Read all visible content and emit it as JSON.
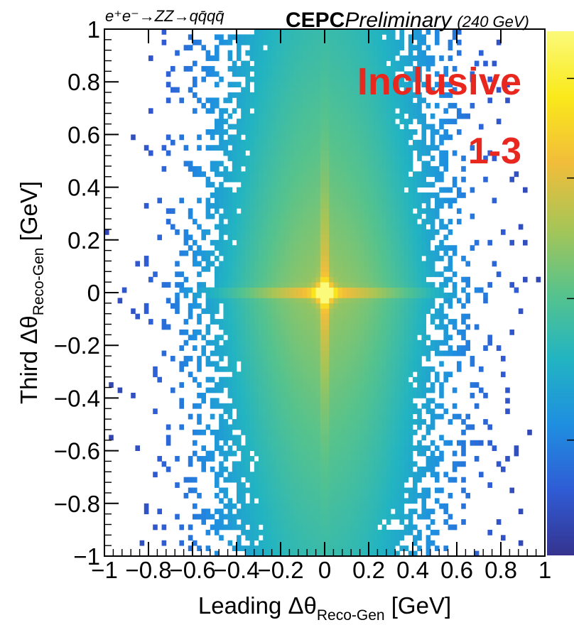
{
  "chart_data": {
    "type": "heatmap",
    "process_label": "e⁺e⁻→ZZ→qq̄qq̄",
    "experiment": "CEPC",
    "status": "Preliminary",
    "energy": "(240 GeV)",
    "annotations": [
      "Inclusive",
      "1-3"
    ],
    "xlabel": {
      "prefix": "Leading Δθ",
      "sub": "Reco-Gen",
      "suffix": " [GeV]"
    },
    "ylabel": {
      "prefix": "Third Δθ",
      "sub": "Reco-Gen",
      "suffix": " [GeV]"
    },
    "xlim": [
      -1,
      1
    ],
    "ylim": [
      -1,
      1
    ],
    "x_ticks": [
      {
        "value": -1,
        "label": "−1"
      },
      {
        "value": -0.8,
        "label": "−0.8"
      },
      {
        "value": -0.6,
        "label": "−0.6"
      },
      {
        "value": -0.4,
        "label": "−0.4"
      },
      {
        "value": -0.2,
        "label": "−0.2"
      },
      {
        "value": 0,
        "label": "0"
      },
      {
        "value": 0.2,
        "label": "0.2"
      },
      {
        "value": 0.4,
        "label": "0.4"
      },
      {
        "value": 0.6,
        "label": "0.6"
      },
      {
        "value": 0.8,
        "label": "0.8"
      },
      {
        "value": 1,
        "label": "1"
      }
    ],
    "y_ticks": [
      {
        "value": -1,
        "label": "−1"
      },
      {
        "value": -0.8,
        "label": "−0.8"
      },
      {
        "value": -0.6,
        "label": "−0.6"
      },
      {
        "value": -0.4,
        "label": "−0.4"
      },
      {
        "value": -0.2,
        "label": "−0.2"
      },
      {
        "value": 0,
        "label": "0"
      },
      {
        "value": 0.2,
        "label": "0.2"
      },
      {
        "value": 0.4,
        "label": "0.4"
      },
      {
        "value": 0.6,
        "label": "0.6"
      },
      {
        "value": 0.8,
        "label": "0.8"
      },
      {
        "value": 1,
        "label": "1"
      }
    ],
    "bins": {
      "nx": 100,
      "ny": 100
    },
    "distribution": {
      "peak": [
        0,
        0
      ],
      "core_width": 0.025,
      "cross_width": 0.012,
      "horizontal_arm_width": 0.18,
      "vertical_arm_width": 0.22,
      "broad_width": 0.3
    },
    "colorscale": [
      "#35338f",
      "#2f5cd5",
      "#1f8fe0",
      "#22b4c2",
      "#57c38c",
      "#a8c556",
      "#f2bd3a",
      "#fae91a",
      "#fbfa7a"
    ],
    "colorbar": {
      "labels_visible": false
    },
    "grid": false
  }
}
